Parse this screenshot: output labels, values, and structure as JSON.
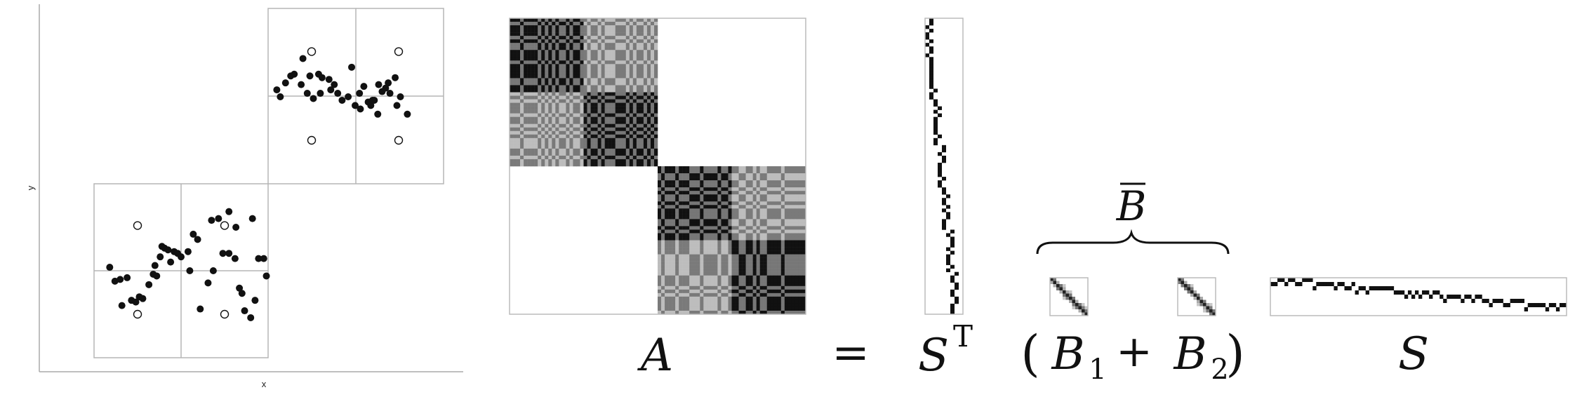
{
  "scatter": {
    "xlabel": "x",
    "ylabel": "y",
    "lower_points": [
      [
        0.32,
        0.3
      ],
      [
        0.43,
        0.33
      ],
      [
        0.48,
        0.32
      ],
      [
        0.52,
        0.35
      ],
      [
        0.56,
        0.34
      ],
      [
        0.63,
        0.42
      ],
      [
        0.68,
        0.48
      ],
      [
        0.72,
        0.47
      ],
      [
        0.76,
        0.58
      ],
      [
        0.78,
        0.64
      ],
      [
        0.81,
        0.63
      ],
      [
        0.85,
        0.62
      ],
      [
        0.92,
        0.61
      ],
      [
        0.96,
        0.6
      ],
      [
        1.08,
        0.61
      ],
      [
        1.14,
        0.71
      ],
      [
        1.19,
        0.68
      ],
      [
        1.31,
        0.43
      ],
      [
        1.37,
        0.5
      ],
      [
        1.43,
        0.8
      ],
      [
        1.48,
        0.6
      ],
      [
        1.55,
        0.6
      ],
      [
        1.63,
        0.75
      ],
      [
        1.62,
        0.57
      ],
      [
        1.67,
        0.4
      ],
      [
        1.73,
        0.27
      ],
      [
        1.8,
        0.23
      ],
      [
        1.82,
        0.8
      ],
      [
        1.89,
        0.57
      ],
      [
        1.95,
        0.57
      ],
      [
        0.18,
        0.52
      ],
      [
        0.24,
        0.44
      ],
      [
        0.3,
        0.45
      ],
      [
        0.38,
        0.46
      ],
      [
        0.7,
        0.53
      ],
      [
        0.88,
        0.55
      ],
      [
        1.0,
        0.58
      ],
      [
        1.1,
        0.5
      ],
      [
        1.22,
        0.28
      ],
      [
        1.35,
        0.79
      ],
      [
        1.55,
        0.84
      ],
      [
        1.7,
        0.37
      ],
      [
        1.85,
        0.33
      ],
      [
        1.98,
        0.47
      ]
    ],
    "upper_points": [
      [
        2.1,
        1.54
      ],
      [
        2.14,
        1.5
      ],
      [
        2.2,
        1.58
      ],
      [
        2.26,
        1.62
      ],
      [
        2.3,
        1.63
      ],
      [
        2.38,
        1.57
      ],
      [
        2.45,
        1.52
      ],
      [
        2.52,
        1.49
      ],
      [
        2.58,
        1.63
      ],
      [
        2.62,
        1.61
      ],
      [
        2.7,
        1.6
      ],
      [
        2.72,
        1.54
      ],
      [
        2.8,
        1.52
      ],
      [
        2.85,
        1.48
      ],
      [
        2.92,
        1.5
      ],
      [
        3.0,
        1.45
      ],
      [
        3.06,
        1.43
      ],
      [
        3.1,
        1.56
      ],
      [
        3.18,
        1.45
      ],
      [
        3.22,
        1.48
      ],
      [
        3.27,
        1.57
      ],
      [
        3.31,
        1.53
      ],
      [
        3.35,
        1.55
      ],
      [
        3.4,
        1.52
      ],
      [
        3.48,
        1.45
      ],
      [
        3.52,
        1.5
      ],
      [
        3.6,
        1.4
      ],
      [
        2.4,
        1.72
      ],
      [
        2.48,
        1.62
      ],
      [
        2.6,
        1.52
      ],
      [
        2.76,
        1.57
      ],
      [
        2.96,
        1.67
      ],
      [
        3.05,
        1.52
      ],
      [
        3.15,
        1.47
      ],
      [
        3.38,
        1.58
      ],
      [
        3.46,
        1.61
      ],
      [
        3.26,
        1.4
      ],
      [
        3.2,
        1.48
      ]
    ],
    "reference_points": [
      [
        0.5,
        0.76
      ],
      [
        1.5,
        0.76
      ],
      [
        0.5,
        0.25
      ],
      [
        1.5,
        0.25
      ],
      [
        2.5,
        1.76
      ],
      [
        3.5,
        1.76
      ],
      [
        2.5,
        1.25
      ],
      [
        3.5,
        1.25
      ]
    ]
  },
  "matrices": {
    "A": "A",
    "equals": "=",
    "S_transpose_base": "S",
    "S_transpose_sup": "T",
    "B_bar": "B",
    "B1_base": "B",
    "B1_sub": "1",
    "plus": "+",
    "B2_base": "B",
    "B2_sub": "2",
    "S": "S",
    "open_paren": "(",
    "close_paren": ")"
  }
}
